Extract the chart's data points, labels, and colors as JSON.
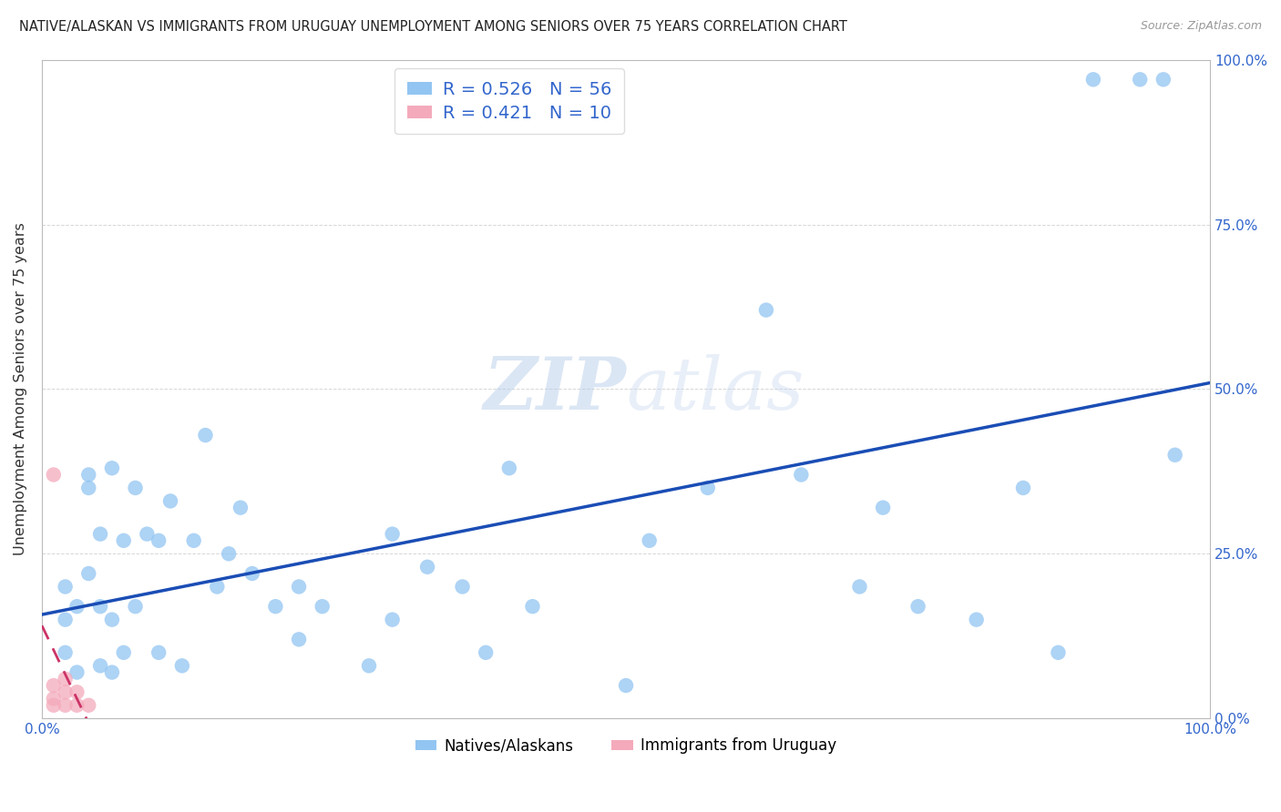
{
  "title": "NATIVE/ALASKAN VS IMMIGRANTS FROM URUGUAY UNEMPLOYMENT AMONG SENIORS OVER 75 YEARS CORRELATION CHART",
  "source": "Source: ZipAtlas.com",
  "ylabel": "Unemployment Among Seniors over 75 years",
  "legend_label_blue": "Natives/Alaskans",
  "legend_label_pink": "Immigrants from Uruguay",
  "R_blue": 0.526,
  "N_blue": 56,
  "R_pink": 0.421,
  "N_pink": 10,
  "blue_color": "#92C5F2",
  "blue_line_color": "#1A4DB5",
  "pink_color": "#F4AABB",
  "pink_line_color": "#CC3366",
  "watermark_zip": "ZIP",
  "watermark_atlas": "atlas",
  "blue_scatter_x": [
    0.02,
    0.02,
    0.02,
    0.03,
    0.03,
    0.04,
    0.04,
    0.04,
    0.05,
    0.05,
    0.05,
    0.06,
    0.06,
    0.06,
    0.07,
    0.07,
    0.08,
    0.08,
    0.09,
    0.1,
    0.1,
    0.11,
    0.12,
    0.13,
    0.14,
    0.15,
    0.16,
    0.17,
    0.18,
    0.2,
    0.22,
    0.22,
    0.24,
    0.28,
    0.3,
    0.3,
    0.33,
    0.36,
    0.38,
    0.4,
    0.42,
    0.5,
    0.52,
    0.57,
    0.62,
    0.65,
    0.7,
    0.72,
    0.75,
    0.8,
    0.84,
    0.87,
    0.9,
    0.94,
    0.96,
    0.97
  ],
  "blue_scatter_y": [
    0.1,
    0.15,
    0.2,
    0.07,
    0.17,
    0.22,
    0.35,
    0.37,
    0.08,
    0.17,
    0.28,
    0.07,
    0.15,
    0.38,
    0.1,
    0.27,
    0.17,
    0.35,
    0.28,
    0.1,
    0.27,
    0.33,
    0.08,
    0.27,
    0.43,
    0.2,
    0.25,
    0.32,
    0.22,
    0.17,
    0.12,
    0.2,
    0.17,
    0.08,
    0.28,
    0.15,
    0.23,
    0.2,
    0.1,
    0.38,
    0.17,
    0.05,
    0.27,
    0.35,
    0.62,
    0.37,
    0.2,
    0.32,
    0.17,
    0.15,
    0.35,
    0.1,
    0.97,
    0.97,
    0.97,
    0.4
  ],
  "pink_scatter_x": [
    0.01,
    0.01,
    0.01,
    0.01,
    0.02,
    0.02,
    0.02,
    0.03,
    0.03,
    0.04
  ],
  "pink_scatter_y": [
    0.02,
    0.03,
    0.05,
    0.37,
    0.02,
    0.04,
    0.06,
    0.02,
    0.04,
    0.02
  ],
  "xlim": [
    0.0,
    1.0
  ],
  "ylim": [
    0.0,
    1.0
  ],
  "xticks": [
    0.0,
    1.0
  ],
  "yticks": [
    0.0,
    0.25,
    0.5,
    0.75,
    1.0
  ],
  "xtick_labels": [
    "0.0%",
    "100.0%"
  ],
  "ytick_labels_right": [
    "0.0%",
    "25.0%",
    "50.0%",
    "75.0%",
    "100.0%"
  ]
}
